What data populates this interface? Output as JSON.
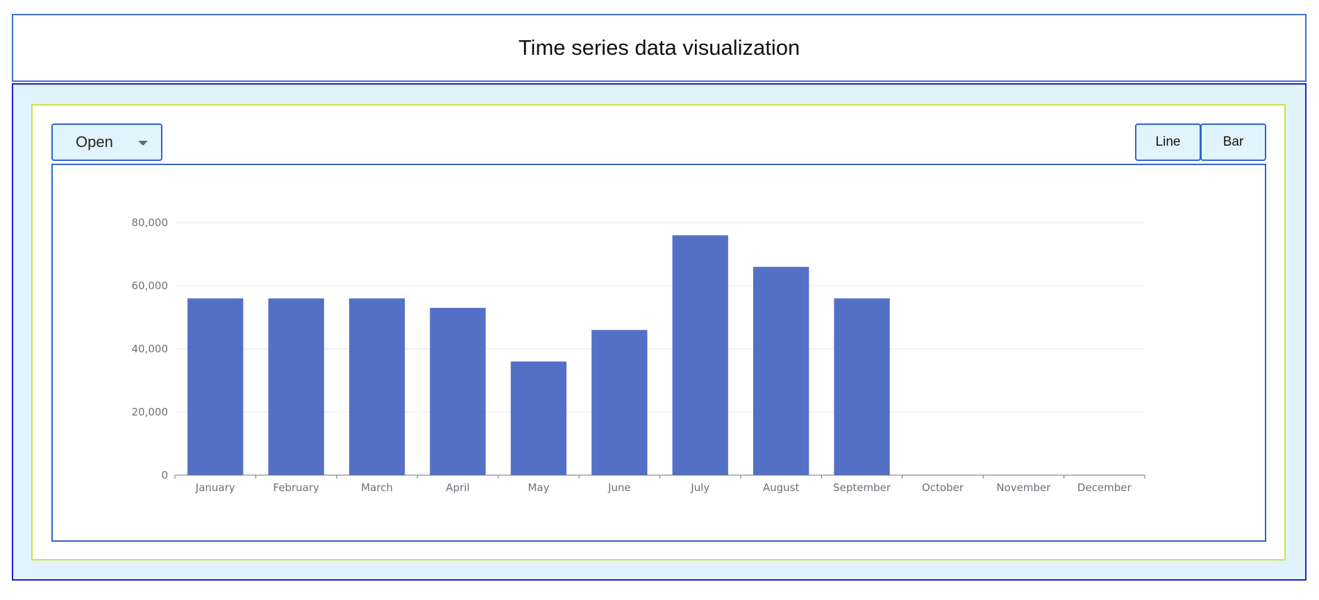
{
  "header": {
    "title": "Time series data visualization"
  },
  "controls": {
    "dropdown": {
      "selected": "Open",
      "icon": "chevron-down-icon"
    },
    "chart_type_buttons": [
      {
        "label": "Line"
      },
      {
        "label": "Bar"
      }
    ]
  },
  "colors": {
    "bar": "#5470c6",
    "panel_background": "#e1f4fd",
    "border_accent": "#2f64c9"
  },
  "chart_data": {
    "type": "bar",
    "categories": [
      "January",
      "February",
      "March",
      "April",
      "May",
      "June",
      "July",
      "August",
      "September",
      "October",
      "November",
      "December"
    ],
    "values": [
      56000,
      56000,
      56000,
      53000,
      36000,
      46000,
      76000,
      66000,
      56000,
      null,
      null,
      null
    ],
    "yticks": [
      0,
      20000,
      40000,
      60000,
      80000
    ],
    "ytick_labels": [
      "0",
      "20,000",
      "40,000",
      "60,000",
      "80,000"
    ],
    "ylim": [
      0,
      80000
    ],
    "grid": true,
    "title": "",
    "xlabel": "",
    "ylabel": ""
  }
}
